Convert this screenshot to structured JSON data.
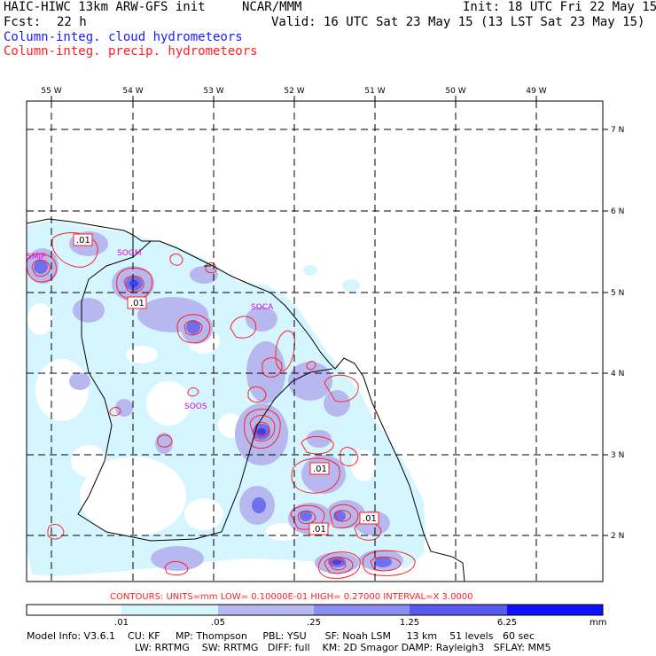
{
  "header": {
    "title": "HAIC-HIWC 13km ARW-GFS init",
    "org": "NCAR/MMM",
    "init": "Init: 18 UTC Fri 22 May 15",
    "fcst_label": "Fcst:",
    "fcst_value": "22 h",
    "valid": "Valid: 16 UTC Sat 23 May 15 (13 LST Sat 23 May 15)",
    "field_cloud": "Column-integ. cloud hydrometeors",
    "field_precip": "Column-integ. precip. hydrometeors"
  },
  "map": {
    "lon_labels": [
      "55 W",
      "54 W",
      "53 W",
      "52 W",
      "51 W",
      "50 W",
      "49 W"
    ],
    "lat_labels": [
      "7 N",
      "6 N",
      "5 N",
      "4 N",
      "3 N",
      "2 N"
    ],
    "stations": [
      "SMJP",
      "SOGM",
      "SOCA",
      "SOOS"
    ],
    "contour_labels": [
      ".01",
      ".01",
      ".01",
      ".01",
      ".01"
    ]
  },
  "contour_info": "CONTOURS:  UNITS=mm   LOW= 0.10000E-01   HIGH= 0.27000      INTERVAL=X  3.0000",
  "colorbar": {
    "ticks": [
      ".01",
      ".05",
      ".25",
      "1.25",
      "6.25"
    ],
    "units": "mm",
    "colors": [
      "#ffffff",
      "#d6f6ff",
      "#b8b8f0",
      "#8c8cf0",
      "#5a5af0",
      "#2a2ae6",
      "#1010ff"
    ]
  },
  "footer": {
    "line1": "Model Info: V3.6.1    CU: KF     MP: Thompson     PBL: YSU      SF: Noah LSM     13 km    51 levels   60 sec",
    "line2": "LW: RRTMG    SW: RRTMG   DIFF: full    KM: 2D Smagor DAMP: Rayleigh3   SFLAY: MM5"
  },
  "colors": {
    "cloud_label": "#1a1aff",
    "precip_label": "#ff2020",
    "station": "#e000e0",
    "contour": "#ff2020"
  }
}
